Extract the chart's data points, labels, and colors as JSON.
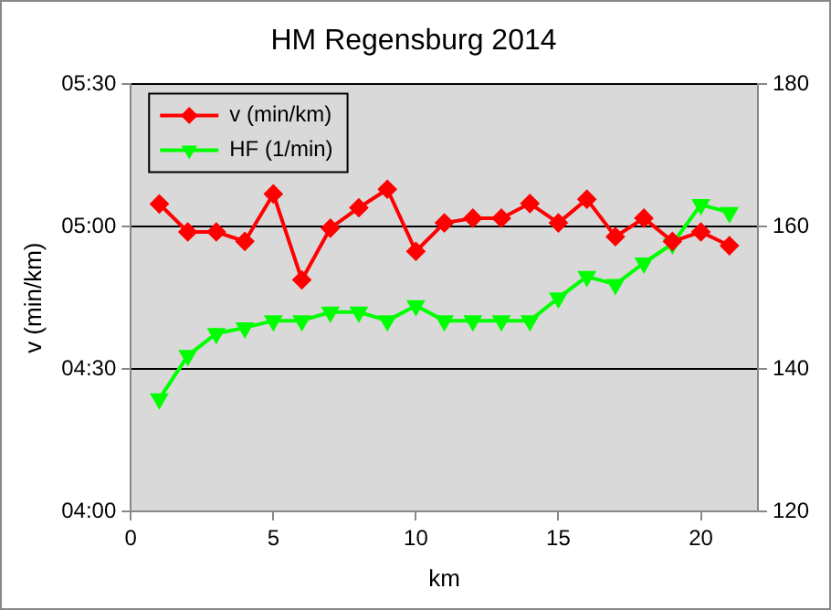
{
  "chart_data": {
    "type": "line",
    "title": "HM Regensburg 2014",
    "xlabel": "km",
    "ylabel": "v (min/km)",
    "x": [
      1,
      2,
      3,
      4,
      5,
      6,
      7,
      8,
      9,
      10,
      11,
      12,
      13,
      14,
      15,
      16,
      17,
      18,
      19,
      20,
      21
    ],
    "series": [
      {
        "name": "v (min/km)",
        "color": "#ff0000",
        "marker": "diamond",
        "values": [
          304.8,
          298.9,
          298.9,
          296.9,
          306.9,
          288.8,
          299.7,
          304,
          307.9,
          294.8,
          300.8,
          301.8,
          301.8,
          304.9,
          300.8,
          305.8,
          297.9,
          301.8,
          296.9,
          298.9,
          296
        ]
      },
      {
        "name": "HF (1/min)",
        "color": "#00ff00",
        "marker": "triangle",
        "axis": "y2",
        "values": [
          135.8,
          141.9,
          145,
          145.8,
          146.8,
          146.8,
          148,
          148,
          146.8,
          148.9,
          146.8,
          146.8,
          146.8,
          146.8,
          150,
          153,
          151.9,
          154.9,
          157.6,
          163.1,
          162
        ]
      }
    ],
    "xlim": [
      0,
      22
    ],
    "xticks": [
      0,
      5,
      10,
      15,
      20
    ],
    "ylim": [
      240,
      330
    ],
    "yticks": [
      {
        "value": 240,
        "label": "04:00"
      },
      {
        "value": 270,
        "label": "04:30"
      },
      {
        "value": 300,
        "label": "05:00"
      },
      {
        "value": 330,
        "label": "05:30"
      }
    ],
    "y2lim": [
      120,
      180
    ],
    "y2ticks": [
      120,
      140,
      160,
      180
    ],
    "grid": "y",
    "legend": "top left",
    "line_style": "solid"
  }
}
